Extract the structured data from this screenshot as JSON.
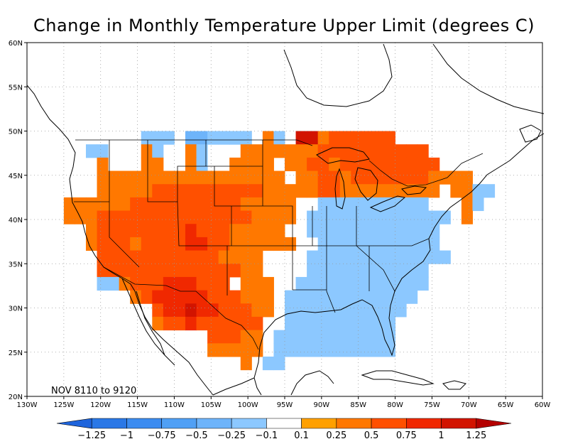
{
  "title": "Change in Monthly Temperature Upper Limit (degrees C)",
  "period_label": "NOV 8110 to 9120",
  "axes": {
    "x_ticks": [
      {
        "value": -130,
        "label": "130W"
      },
      {
        "value": -125,
        "label": "125W"
      },
      {
        "value": -120,
        "label": "120W"
      },
      {
        "value": -115,
        "label": "115W"
      },
      {
        "value": -110,
        "label": "110W"
      },
      {
        "value": -105,
        "label": "105W"
      },
      {
        "value": -100,
        "label": "100W"
      },
      {
        "value": -95,
        "label": "95W"
      },
      {
        "value": -90,
        "label": "90W"
      },
      {
        "value": -85,
        "label": "85W"
      },
      {
        "value": -80,
        "label": "80W"
      },
      {
        "value": -75,
        "label": "75W"
      },
      {
        "value": -70,
        "label": "70W"
      },
      {
        "value": -65,
        "label": "65W"
      },
      {
        "value": -60,
        "label": "60W"
      }
    ],
    "y_ticks": [
      {
        "value": 20,
        "label": "20N"
      },
      {
        "value": 25,
        "label": "25N"
      },
      {
        "value": 30,
        "label": "30N"
      },
      {
        "value": 35,
        "label": "35N"
      },
      {
        "value": 40,
        "label": "40N"
      },
      {
        "value": 45,
        "label": "45N"
      },
      {
        "value": 50,
        "label": "50N"
      },
      {
        "value": 55,
        "label": "55N"
      },
      {
        "value": 60,
        "label": "60N"
      }
    ],
    "lon_range": [
      -130,
      -60
    ],
    "lat_range": [
      20,
      60
    ],
    "grid": "dotted"
  },
  "colorbar": {
    "labels": [
      "-1.25",
      "-1",
      "-0.75",
      "-0.5",
      "-0.25",
      "-0.1",
      "0.1",
      "0.25",
      "0.5",
      "0.75",
      "1",
      "1.25"
    ],
    "colors": [
      "#1e64dc",
      "#2a78e6",
      "#3c8cf0",
      "#50a0f5",
      "#6eb4fa",
      "#8cc8ff",
      "#ffffff",
      "#ffa000",
      "#ff7800",
      "#ff5000",
      "#f02800",
      "#d21400",
      "#b40000"
    ]
  },
  "grid_cell_deg": 1.5,
  "grid_origin": {
    "lon": -125,
    "lat": 50
  },
  "grid_rows": [
    ".......BBB.SSBBBB.CB.FFCDDDDDD..........",
    "..BB...CB..CB...CCCCCCCDDDDDDDDDD.......",
    "...C...CC..CB..CCCC.CCDDCDDDDDDDDD......",
    "...CCCCCCCCCCCCCCCCC.CCDDCDDDDDDDCCCC...",
    "...CCCCCDDDDDDDDDDCCCCCDDCCCCCCCCC.CCBB.",
    "CCCCCCDDDDDDDDDDCCCCC..BBBBBBBBBB...CB..",
    "CCCDDDDDDDDDDDDDDCCCC.BBBBBBBBBBBBB.C...",
    "..CDDDDDDDDEDDDCCCCC..BBBBBBBBBBBB......",
    "..CDDDCDDDDEEDDCCCCCC..BBBBBBBBBBB......",
    "...DDDDDDDDDDDCCCC....BBBBBBBBBBBBB.....",
    "...DDDDDDDDDDDDDCC....BBBBBBBBBBB.......",
    "...BBCDDDEEEDDD.CCC..BBBBBBBBBBBB.......",
    "......CDEEEEEDDDCCC.BBBBBBBBBBBB........",
    "........DEEFEEDDDCC.BBBBBBBBBBB.........",
    "........CDDEDDDDDD..BBBBBBBBBB..........",
    ".............DDDCC.BBBBBBBBBBB..........",
    ".............CCCCC.BBBBBBBBBBB..........",
    "................C.BB...................."
  ],
  "grid_legend": {
    "S": -0.5,
    "B": -0.25,
    "C": 0.25,
    "D": 0.5,
    "E": 0.75,
    "F": 1.0
  }
}
